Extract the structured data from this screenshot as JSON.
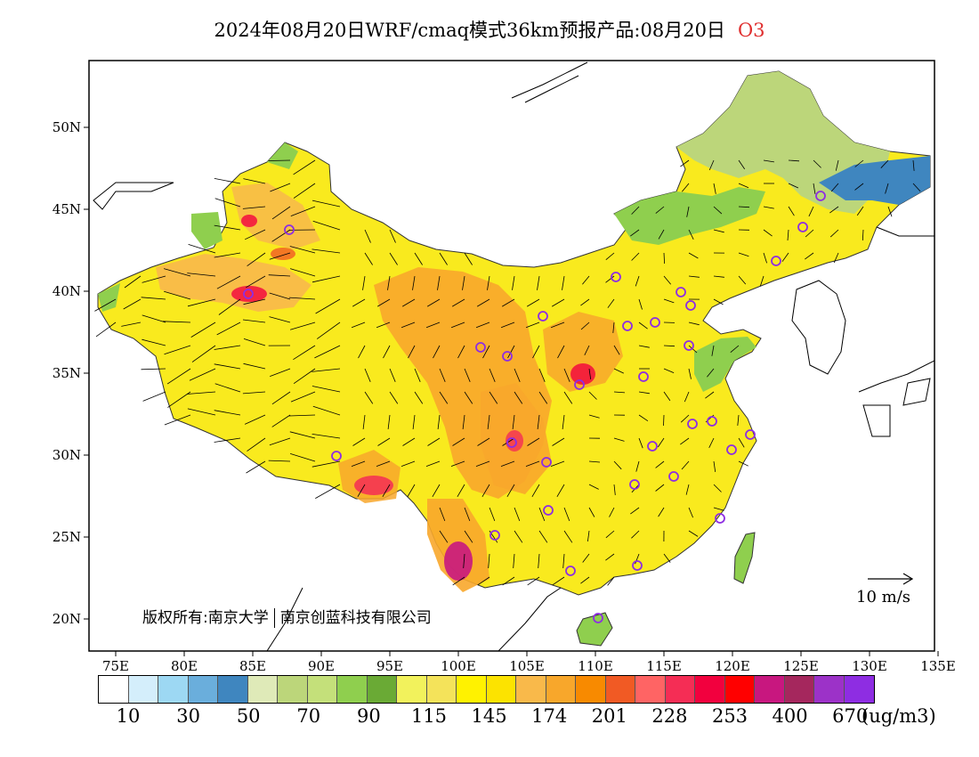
{
  "title": {
    "main": "2024年08月20日WRF/cmaq模式36km预报产品:08月20日",
    "pollutant": "O3"
  },
  "axes": {
    "lat_ticks": [
      "50N",
      "45N",
      "40N",
      "35N",
      "30N",
      "25N",
      "20N"
    ],
    "lon_ticks": [
      "75E",
      "80E",
      "85E",
      "90E",
      "95E",
      "100E",
      "105E",
      "110E",
      "115E",
      "120E",
      "125E",
      "130E",
      "135E"
    ]
  },
  "copyright": {
    "left": "版权所有:南京大学",
    "right": "南京创蓝科技有限公司"
  },
  "wind_reference": {
    "label": "10 m/s"
  },
  "colorbar": {
    "colors": [
      "#ffffff",
      "#d4eefb",
      "#9dd8f3",
      "#6aaedc",
      "#3f86bf",
      "#dfeab8",
      "#bcd67a",
      "#c4e07a",
      "#8fcf4e",
      "#6aaa35",
      "#f2f25c",
      "#f4e35a",
      "#fff200",
      "#fce300",
      "#f9b94a",
      "#f8a72b",
      "#f88a00",
      "#f15a24",
      "#ff6464",
      "#f52d55",
      "#f2003e",
      "#ff0000",
      "#c8177f",
      "#a5275d",
      "#9c32c8",
      "#8e2de2"
    ],
    "labels": [
      "10",
      "30",
      "50",
      "70",
      "90",
      "115",
      "145",
      "174",
      "201",
      "228",
      "253",
      "400",
      "670"
    ],
    "unit": "(ug/m3)"
  },
  "colors": {
    "low_blue": "#3f86bf",
    "low_green": "#8fcf4e",
    "mid_yellow": "#fff200",
    "high_orange": "#f8a72b",
    "very_high_red": "#f2003e",
    "extreme_magenta": "#c8177f",
    "city_marker": "#8e2de2"
  }
}
